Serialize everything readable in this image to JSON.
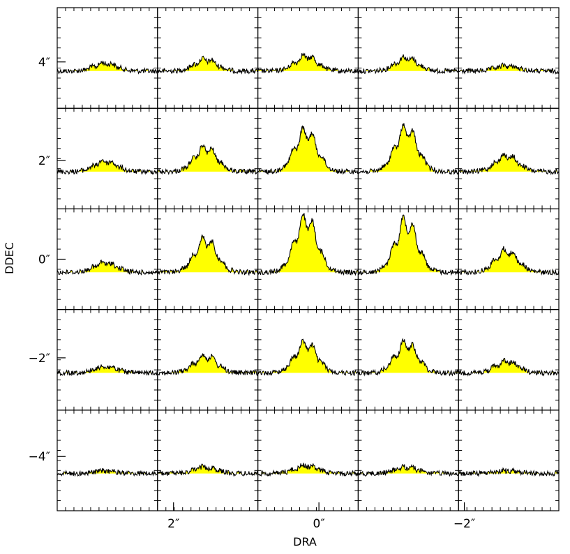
{
  "chart_data": {
    "type": "spectra-grid",
    "xlabel": "DRA",
    "ylabel": "DDEC",
    "x_ticks": [
      {
        "value": 2,
        "label": "2″"
      },
      {
        "value": 0,
        "label": "0″"
      },
      {
        "value": -2,
        "label": "−2″"
      }
    ],
    "y_ticks": [
      {
        "value": 4,
        "label": "4″"
      },
      {
        "value": 2,
        "label": "2″"
      },
      {
        "value": 0,
        "label": "0″"
      },
      {
        "value": -2,
        "label": "−2″"
      },
      {
        "value": -4,
        "label": "−4″"
      }
    ],
    "xlim": [
      3.6,
      -3.3
    ],
    "ylim": [
      -5.1,
      5.1
    ],
    "columns_dra": [
      2.0,
      1.0,
      0.0,
      -1.0,
      -2.0
    ],
    "rows_ddec": [
      4.0,
      2.0,
      0.0,
      -2.0,
      -4.0
    ],
    "panel_relative_peak_intensity": [
      [
        0.15,
        0.22,
        0.28,
        0.25,
        0.1
      ],
      [
        0.2,
        0.45,
        0.75,
        0.8,
        0.3
      ],
      [
        0.18,
        0.6,
        1.0,
        0.95,
        0.4
      ],
      [
        0.12,
        0.32,
        0.55,
        0.55,
        0.22
      ],
      [
        0.05,
        0.12,
        0.15,
        0.12,
        0.05
      ]
    ],
    "fill_color": "#ffff00",
    "line_color": "#000000",
    "frame_color": "#000000",
    "background": "#ffffff"
  }
}
